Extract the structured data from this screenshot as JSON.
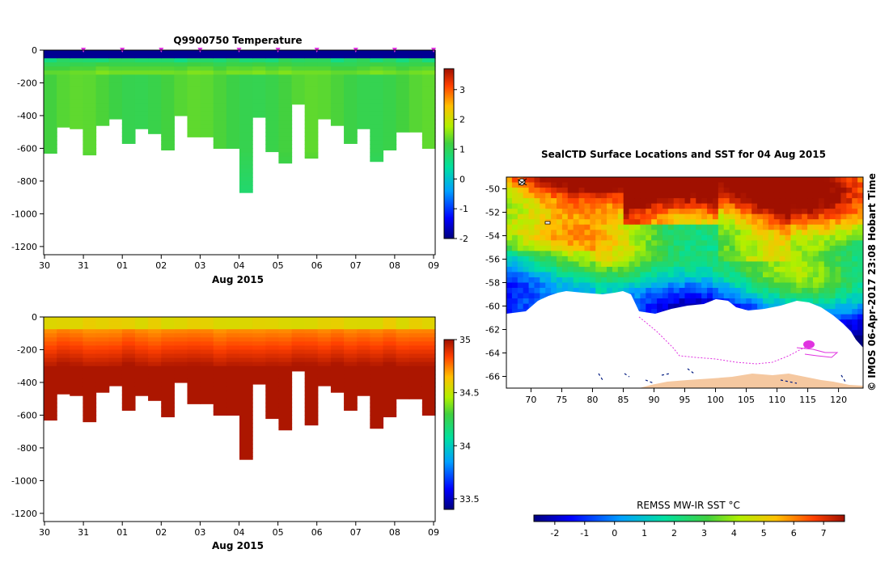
{
  "chart_data": [
    {
      "type": "heatmap",
      "title": "Q9900750  Temperature",
      "xlabel": "Aug 2015",
      "ylabel": "",
      "ylim": [
        -1250,
        0
      ],
      "yticks": [
        0,
        -200,
        -400,
        -600,
        -800,
        -1000,
        -1200
      ],
      "xtick_labels": [
        "30",
        "31",
        "01",
        "02",
        "03",
        "04",
        "05",
        "06",
        "07",
        "08",
        "09"
      ],
      "colorbar": {
        "min": -2,
        "max": 3.7,
        "ticks": [
          3,
          2,
          1,
          0,
          -1,
          -2
        ]
      },
      "profile_markers": [
        "31",
        "01",
        "02",
        "03",
        "04",
        "05",
        "06",
        "07",
        "08",
        "09"
      ],
      "profile_max_depths": [
        630,
        470,
        480,
        640,
        460,
        420,
        570,
        480,
        510,
        610,
        400,
        530,
        530,
        600,
        600,
        870,
        410,
        620,
        690,
        330,
        660,
        420,
        460,
        570,
        480,
        680,
        610,
        500,
        500,
        600
      ],
      "surface_value": -1.9,
      "deep_value": 1.2
    },
    {
      "type": "heatmap",
      "title": "",
      "xlabel": "Aug 2015",
      "ylabel": "",
      "ylim": [
        -1250,
        0
      ],
      "yticks": [
        0,
        -200,
        -400,
        -600,
        -800,
        -1000,
        -1200
      ],
      "xtick_labels": [
        "30",
        "31",
        "01",
        "02",
        "03",
        "04",
        "05",
        "06",
        "07",
        "08",
        "09"
      ],
      "colorbar": {
        "min": 33.4,
        "max": 35.0,
        "ticks": [
          "35",
          "34.5",
          "34",
          "33.5"
        ]
      },
      "profile_max_depths": [
        630,
        470,
        480,
        640,
        460,
        420,
        570,
        480,
        510,
        610,
        400,
        530,
        530,
        600,
        600,
        870,
        410,
        620,
        690,
        330,
        660,
        420,
        460,
        570,
        480,
        680,
        610,
        500,
        500,
        600
      ],
      "surface_value": 34.55,
      "deep_value": 34.98
    },
    {
      "type": "heatmap",
      "title": "SealCTD Surface Locations and SST for 04 Aug 2015",
      "xlabel": "",
      "ylabel": "",
      "xlim": [
        66,
        124
      ],
      "ylim": [
        -67,
        -49
      ],
      "xtick_labels": [
        "70",
        "75",
        "80",
        "85",
        "90",
        "95",
        "100",
        "105",
        "110",
        "115",
        "120"
      ],
      "ytick_labels": [
        "-50",
        "-52",
        "-54",
        "-56",
        "-58",
        "-60",
        "-62",
        "-64",
        "-66"
      ],
      "colorbar": {
        "label": "REMSS MW-IR SST °C",
        "min": -2.7,
        "max": 7.7,
        "ticks": [
          "-2",
          "-1",
          "0",
          "1",
          "2",
          "3",
          "4",
          "5",
          "6",
          "7"
        ]
      },
      "side_credit": "© IMOS 06-Apr-2017 23:08 Hobart Time",
      "track_color": "#e033e0"
    }
  ]
}
